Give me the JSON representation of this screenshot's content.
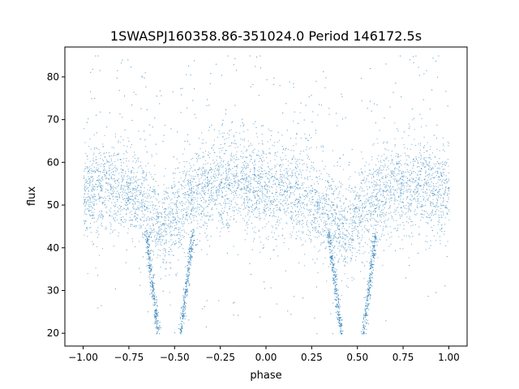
{
  "chart_data": {
    "type": "scatter",
    "title": "1SWASPJ160358.86-351024.0 Period 146172.5s",
    "xlabel": "phase",
    "ylabel": "flux",
    "xlim": [
      -1.1,
      1.1
    ],
    "ylim": [
      17,
      87
    ],
    "grid": false,
    "x_ticks": [
      -1.0,
      -0.75,
      -0.5,
      -0.25,
      0.0,
      0.25,
      0.5,
      0.75,
      1.0
    ],
    "x_tick_labels": [
      "−1.00",
      "−0.75",
      "−0.50",
      "−0.25",
      "0.00",
      "0.25",
      "0.50",
      "0.75",
      "1.00"
    ],
    "y_ticks": [
      20,
      30,
      40,
      50,
      60,
      70,
      80
    ],
    "y_tick_labels": [
      "20",
      "30",
      "40",
      "50",
      "60",
      "70",
      "80"
    ],
    "colors": {
      "points": "#1f77b4"
    },
    "series": [
      {
        "marker": "point",
        "profile": {
          "x": [
            -1.0,
            -0.9,
            -0.8,
            -0.7,
            -0.65,
            -0.6,
            -0.57,
            -0.55,
            -0.53,
            -0.5,
            -0.45,
            -0.4,
            -0.3,
            -0.2,
            -0.1,
            0.0,
            0.1,
            0.2,
            0.3,
            0.35,
            0.4,
            0.43,
            0.45,
            0.47,
            0.5,
            0.55,
            0.6,
            0.7,
            0.8,
            0.9,
            1.0
          ],
          "y_median": [
            53,
            54,
            54,
            52,
            50,
            47,
            45,
            44,
            45,
            47,
            50,
            52,
            54,
            55,
            55,
            54,
            53,
            52,
            50,
            48,
            45,
            44,
            44,
            45,
            47,
            50,
            52,
            54,
            55,
            54,
            53
          ],
          "scatter_spread": 5.5
        },
        "eclipse_minima": [
          {
            "x": -0.59,
            "y": 20
          },
          {
            "x": -0.47,
            "y": 20
          },
          {
            "x": 0.41,
            "y": 20
          },
          {
            "x": 0.53,
            "y": 20
          }
        ],
        "flux_max_observed": 85,
        "flux_min_observed": 20
      }
    ]
  }
}
